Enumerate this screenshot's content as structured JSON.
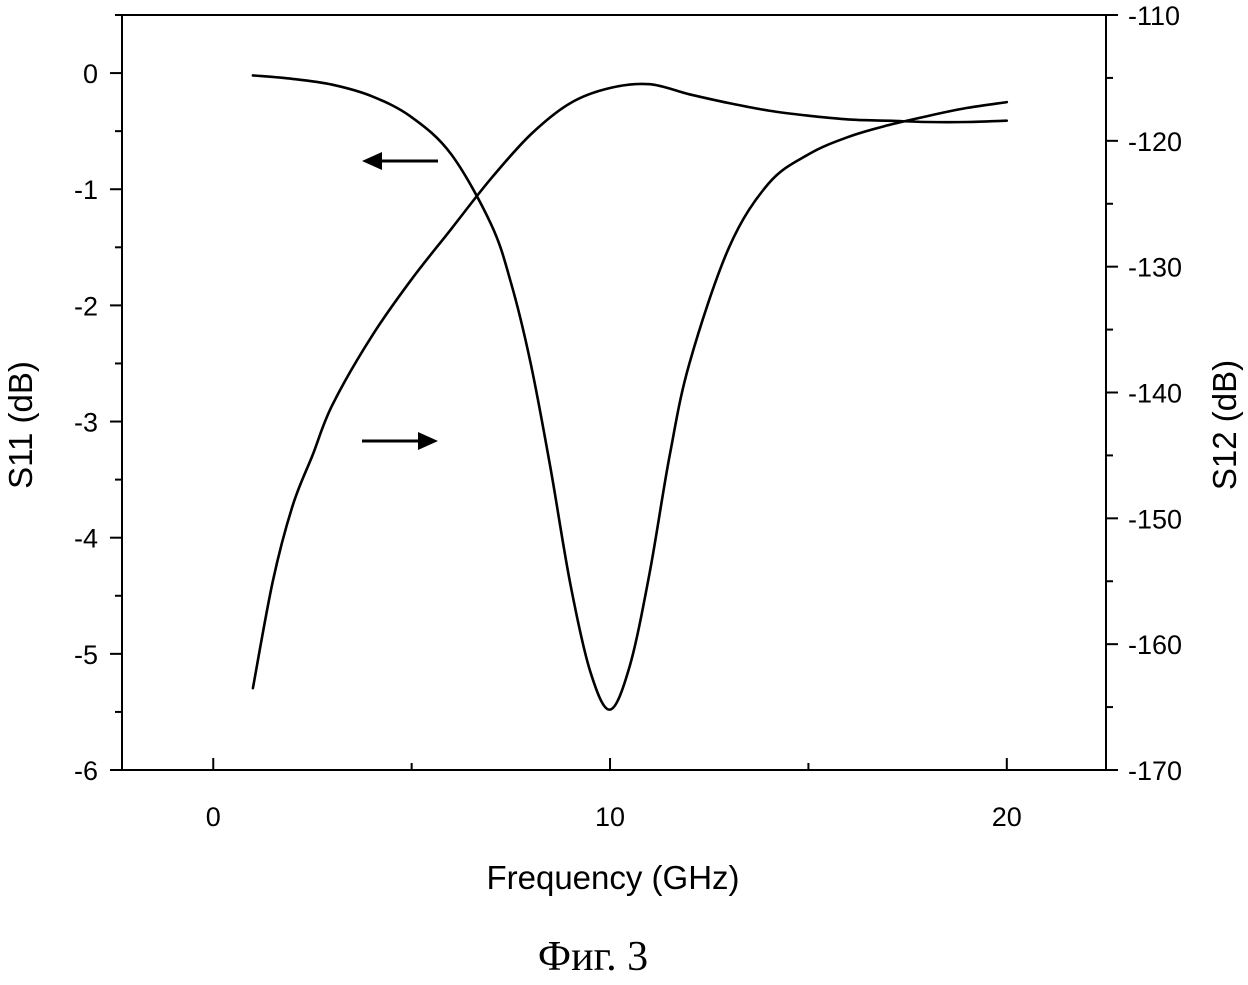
{
  "chart_data": {
    "type": "line",
    "title": "",
    "xlabel": "Frequency (GHz)",
    "ylabel_left": "S11 (dB)",
    "ylabel_right": "S12 (dB)",
    "caption": "Фиг. 3",
    "xlim": [
      -2.3,
      22.5
    ],
    "ylim_left": [
      -6,
      0.5
    ],
    "ylim_right": [
      -170,
      -110
    ],
    "x_ticks": [
      0,
      10,
      20
    ],
    "x_tick_labels": [
      "0",
      "10",
      "20"
    ],
    "y_left_ticks": [
      0,
      -1,
      -2,
      -3,
      -4,
      -5,
      -6
    ],
    "y_left_tick_labels": [
      "0",
      "-1",
      "-2",
      "-3",
      "-4",
      "-5",
      "-6"
    ],
    "y_right_ticks": [
      -110,
      -120,
      -130,
      -140,
      -150,
      -160,
      -170
    ],
    "y_right_tick_labels": [
      "-110",
      "-120",
      "-130",
      "-140",
      "-150",
      "-160",
      "-170"
    ],
    "grid": false,
    "series": [
      {
        "name": "S11",
        "axis": "left",
        "x": [
          1,
          2,
          3,
          4,
          5,
          6,
          7,
          7.5,
          8,
          8.5,
          9,
          9.5,
          10,
          10.5,
          11,
          11.5,
          12,
          13,
          14,
          15,
          16,
          17,
          18,
          19,
          20
        ],
        "y": [
          -0.02,
          -0.05,
          -0.1,
          -0.2,
          -0.38,
          -0.7,
          -1.3,
          -1.8,
          -2.5,
          -3.4,
          -4.4,
          -5.15,
          -5.48,
          -5.1,
          -4.3,
          -3.3,
          -2.5,
          -1.5,
          -0.95,
          -0.7,
          -0.55,
          -0.45,
          -0.37,
          -0.3,
          -0.25
        ]
      },
      {
        "name": "S12",
        "axis": "right",
        "x": [
          1,
          1.5,
          2,
          2.5,
          3,
          4,
          5,
          6,
          7,
          8,
          9,
          10,
          11,
          12,
          13,
          14,
          15,
          16,
          17,
          18,
          19,
          20
        ],
        "y": [
          -163.5,
          -155,
          -149,
          -145,
          -141,
          -135.5,
          -131,
          -127,
          -123,
          -119.5,
          -117,
          -115.8,
          -115.5,
          -116.3,
          -117,
          -117.6,
          -118,
          -118.3,
          -118.4,
          -118.5,
          -118.5,
          -118.4
        ]
      }
    ],
    "annotations": [
      {
        "type": "arrow",
        "direction": "left",
        "indicates": "S11 (left axis)"
      },
      {
        "type": "arrow",
        "direction": "right",
        "indicates": "S12 (right axis)"
      }
    ]
  }
}
